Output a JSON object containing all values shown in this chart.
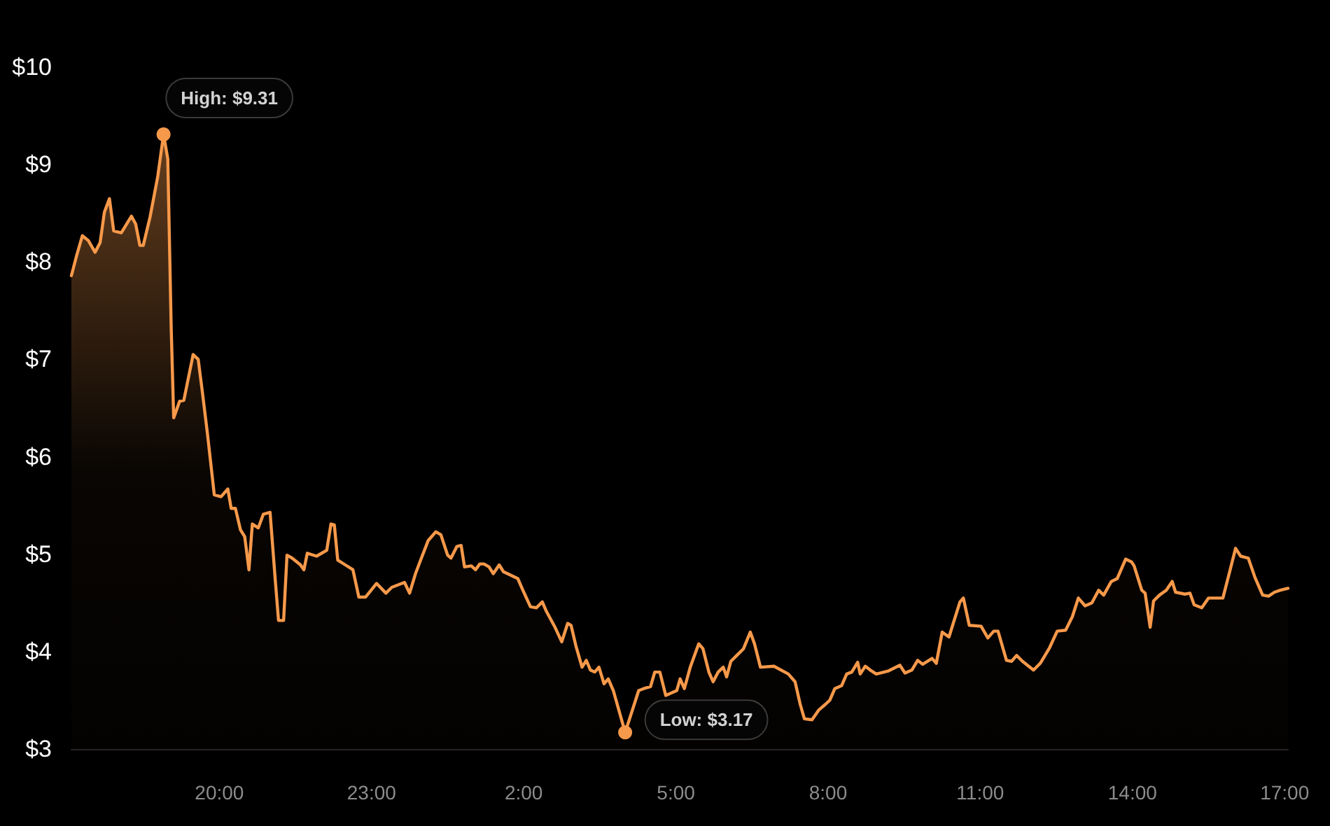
{
  "chart_data": {
    "type": "area",
    "color": "#f7994a",
    "x": [
      "--01-01T17:05",
      "--01-01T17:11",
      "--01-01T17:18",
      "--01-01T17:25",
      "--01-01T17:33",
      "--01-01T17:39",
      "--01-01T17:44",
      "--01-01T17:50",
      "--01-01T17:55",
      "--01-01T18:04",
      "--01-01T18:16",
      "--01-01T18:21",
      "--01-01T18:26",
      "--01-01T18:30",
      "--01-01T18:38",
      "--01-01T18:47",
      "--01-01T18:54",
      "--01-01T18:59",
      "--01-01T19:03",
      "--01-01T19:06",
      "--01-01T19:13",
      "--01-01T19:18",
      "--01-01T19:29",
      "--01-01T19:35",
      "--01-01T19:40",
      "--01-01T19:46",
      "--01-01T19:54",
      "--01-01T20:02",
      "--01-01T20:10",
      "--01-01T20:14",
      "--01-01T20:19",
      "--01-01T20:25",
      "--01-01T20:30",
      "--01-01T20:35",
      "--01-01T20:39",
      "--01-01T20:46",
      "--01-01T20:52",
      "--01-01T21:00",
      "--01-01T21:06",
      "--01-01T21:10",
      "--01-01T21:16",
      "--01-01T21:20",
      "--01-01T21:26",
      "--01-01T21:36",
      "--01-01T21:40",
      "--01-01T21:44",
      "--01-01T21:55",
      "--01-01T22:07",
      "--01-01T22:12",
      "--01-01T22:16",
      "--01-01T22:20",
      "--01-01T22:29",
      "--01-01T22:38",
      "--01-01T22:45",
      "--01-01T22:53",
      "--01-01T23:06",
      "--01-01T23:17",
      "--01-01T23:24",
      "--01-01T23:39",
      "--01-01T23:45",
      "--01-01T23:52",
      "--01-01T23:59",
      "--01-02T00:07",
      "--01-02T00:16",
      "--01-02T00:22",
      "--01-02T00:30",
      "--01-02T00:34",
      "--01-02T00:41",
      "--01-02T00:46",
      "--01-02T00:50",
      "--01-02T00:58",
      "--01-02T01:03",
      "--01-02T01:08",
      "--01-02T01:13",
      "--01-02T01:19",
      "--01-02T01:24",
      "--01-02T01:31",
      "--01-02T01:36",
      "--01-02T01:53",
      "--01-02T01:59",
      "--01-02T02:08",
      "--01-02T02:15",
      "--01-02T02:22",
      "--01-02T02:27",
      "--01-02T02:37",
      "--01-02T02:45",
      "--01-02T02:52",
      "--01-02T02:56",
      "--01-02T03:02",
      "--01-02T03:09",
      "--01-02T03:14",
      "--01-02T03:19",
      "--01-02T03:24",
      "--01-02T03:29",
      "--01-02T03:35",
      "--01-02T03:40",
      "--01-02T03:46",
      "--01-02T04:00",
      "--01-02T04:16",
      "--01-02T04:22",
      "--01-02T04:30",
      "--01-02T04:35",
      "--01-02T04:41",
      "--01-02T04:48",
      "--01-02T05:01",
      "--01-02T05:05",
      "--01-02T05:10",
      "--01-02T05:17",
      "--01-02T05:27",
      "--01-02T05:32",
      "--01-02T05:39",
      "--01-02T05:44",
      "--01-02T05:50",
      "--01-02T05:56",
      "--01-02T06:00",
      "--01-02T06:05",
      "--01-02T06:12",
      "--01-02T06:20",
      "--01-02T06:28",
      "--01-02T06:33",
      "--01-02T06:40",
      "--01-02T06:56",
      "--01-02T07:13",
      "--01-02T07:21",
      "--01-02T07:27",
      "--01-02T07:32",
      "--01-02T07:41",
      "--01-02T07:49",
      "--01-02T07:57",
      "--01-02T08:02",
      "--01-02T08:08",
      "--01-02T08:16",
      "--01-02T08:22",
      "--01-02T08:28",
      "--01-02T08:35",
      "--01-02T08:38",
      "--01-02T08:44",
      "--01-02T08:50",
      "--01-02T08:57",
      "--01-02T09:11",
      "--01-02T09:25",
      "--01-02T09:31",
      "--01-02T09:39",
      "--01-02T09:46",
      "--01-02T09:52",
      "--01-02T10:03",
      "--01-02T10:08",
      "--01-02T10:15",
      "--01-02T10:23",
      "--01-02T10:36",
      "--01-02T10:40",
      "--01-02T10:47",
      "--01-02T11:01",
      "--01-02T11:09",
      "--01-02T11:16",
      "--01-02T11:21",
      "--01-02T11:31",
      "--01-02T11:37",
      "--01-02T11:43",
      "--01-02T11:50",
      "--01-02T12:03",
      "--01-02T12:11",
      "--01-02T12:22",
      "--01-02T12:31",
      "--01-02T12:41",
      "--01-02T12:49",
      "--01-02T12:56",
      "--01-02T13:04",
      "--01-02T13:12",
      "--01-02T13:20",
      "--01-02T13:26",
      "--01-02T13:35",
      "--01-02T13:42",
      "--01-02T13:52",
      "--01-02T13:59",
      "--01-02T14:02",
      "--01-02T14:11",
      "--01-02T14:15",
      "--01-02T14:21",
      "--01-02T14:25",
      "--01-02T14:32",
      "--01-02T14:40",
      "--01-02T14:47",
      "--01-02T14:51",
      "--01-02T15:02",
      "--01-02T15:08",
      "--01-02T15:13",
      "--01-02T15:22",
      "--01-02T15:30",
      "--01-02T15:47",
      "--01-02T15:55",
      "--01-02T16:02",
      "--01-02T16:08",
      "--01-02T16:17",
      "--01-02T16:25",
      "--01-02T16:34",
      "--01-02T16:41",
      "--01-02T16:48",
      "--01-02T16:55",
      "--01-02T17:04"
    ],
    "values": [
      7.86,
      8.06,
      8.27,
      8.22,
      8.1,
      8.2,
      8.51,
      8.65,
      8.32,
      8.3,
      8.47,
      8.39,
      8.17,
      8.17,
      8.46,
      8.87,
      9.31,
      9.06,
      7.34,
      6.4,
      6.57,
      6.58,
      7.05,
      7.0,
      6.66,
      6.23,
      5.61,
      5.59,
      5.67,
      5.47,
      5.47,
      5.25,
      5.18,
      4.84,
      5.31,
      5.27,
      5.41,
      5.43,
      4.75,
      4.32,
      4.32,
      4.99,
      4.96,
      4.89,
      4.84,
      5.01,
      4.98,
      5.04,
      5.31,
      5.3,
      4.94,
      4.89,
      4.84,
      4.56,
      4.56,
      4.7,
      4.6,
      4.66,
      4.71,
      4.6,
      4.8,
      4.96,
      5.14,
      5.23,
      5.2,
      4.99,
      4.96,
      5.08,
      5.09,
      4.87,
      4.88,
      4.84,
      4.9,
      4.9,
      4.87,
      4.8,
      4.89,
      4.82,
      4.75,
      4.63,
      4.46,
      4.45,
      4.51,
      4.41,
      4.25,
      4.1,
      4.29,
      4.27,
      4.05,
      3.84,
      3.91,
      3.81,
      3.79,
      3.84,
      3.67,
      3.72,
      3.6,
      3.17,
      3.6,
      3.62,
      3.64,
      3.79,
      3.79,
      3.55,
      3.6,
      3.72,
      3.62,
      3.84,
      4.08,
      4.03,
      3.79,
      3.69,
      3.79,
      3.84,
      3.74,
      3.9,
      3.96,
      4.03,
      4.2,
      4.08,
      3.84,
      3.85,
      3.77,
      3.69,
      3.46,
      3.31,
      3.3,
      3.4,
      3.46,
      3.5,
      3.62,
      3.65,
      3.77,
      3.79,
      3.89,
      3.77,
      3.85,
      3.81,
      3.77,
      3.8,
      3.86,
      3.78,
      3.81,
      3.91,
      3.87,
      3.93,
      3.88,
      4.2,
      4.15,
      4.51,
      4.55,
      4.27,
      4.26,
      4.14,
      4.21,
      4.21,
      3.91,
      3.9,
      3.96,
      3.9,
      3.81,
      3.88,
      4.04,
      4.21,
      4.22,
      4.36,
      4.55,
      4.47,
      4.5,
      4.63,
      4.58,
      4.72,
      4.75,
      4.95,
      4.92,
      4.88,
      4.63,
      4.6,
      4.25,
      4.52,
      4.58,
      4.63,
      4.72,
      4.61,
      4.59,
      4.6,
      4.48,
      4.45,
      4.55,
      4.55,
      4.82,
      5.06,
      4.98,
      4.96,
      4.76,
      4.58,
      4.57,
      4.61,
      4.63,
      4.65
    ],
    "xlim": [
      "--01-01T17:05",
      "--01-02T17:04"
    ],
    "ylim": [
      3,
      10
    ],
    "xticks": [
      {
        "value": "--01-01T20:00",
        "label": "20:00"
      },
      {
        "value": "--01-01T23:00",
        "label": "23:00"
      },
      {
        "value": "--01-02T02:00",
        "label": "2:00"
      },
      {
        "value": "--01-02T05:00",
        "label": "5:00"
      },
      {
        "value": "--01-02T08:00",
        "label": "8:00"
      },
      {
        "value": "--01-02T11:00",
        "label": "11:00"
      },
      {
        "value": "--01-02T14:00",
        "label": "14:00"
      },
      {
        "value": "--01-02T17:00",
        "label": "17:00"
      }
    ],
    "yticks": [
      {
        "value": 3,
        "label": "$3"
      },
      {
        "value": 4,
        "label": "$4"
      },
      {
        "value": 5,
        "label": "$5"
      },
      {
        "value": 6,
        "label": "$6"
      },
      {
        "value": 7,
        "label": "$7"
      },
      {
        "value": 8,
        "label": "$8"
      },
      {
        "value": 9,
        "label": "$9"
      },
      {
        "value": 10,
        "label": "$10"
      }
    ],
    "annotations": [
      {
        "text": "High: $9.31",
        "x": "--01-01T18:54",
        "y": 9.31
      },
      {
        "text": "Low: $3.17",
        "x": "--01-02T04:00",
        "y": 3.17
      }
    ]
  }
}
